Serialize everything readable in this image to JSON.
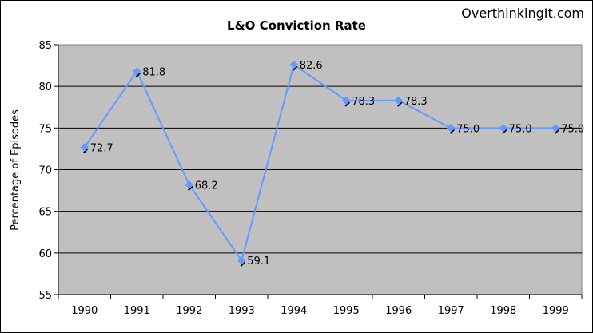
{
  "watermark": "OverthinkingIt.com",
  "colors": {
    "plot_background": "#c0c0c0",
    "line": "#6699ff",
    "marker": "#6699ff",
    "gridline": "#000000",
    "page_background": "#ffffff"
  },
  "chart_data": {
    "type": "line",
    "title": "L&O Conviction Rate",
    "xlabel": "",
    "ylabel": "Percentage of Episodes",
    "categories": [
      "1990",
      "1991",
      "1992",
      "1993",
      "1994",
      "1995",
      "1996",
      "1997",
      "1998",
      "1999"
    ],
    "series": [
      {
        "values": [
          72.7,
          81.8,
          68.2,
          59.1,
          82.6,
          78.3,
          78.3,
          75.0,
          75.0,
          75.0
        ],
        "labels": [
          "72.7",
          "81.8",
          "68.2",
          "59.1",
          "82.6",
          "78.3",
          "78.3",
          "75.0",
          "75.0",
          "75.0"
        ]
      }
    ],
    "ylim": [
      55,
      85
    ],
    "yticks": [
      "55",
      "60",
      "65",
      "70",
      "75",
      "80",
      "85"
    ],
    "grid": true,
    "legend": "none"
  }
}
